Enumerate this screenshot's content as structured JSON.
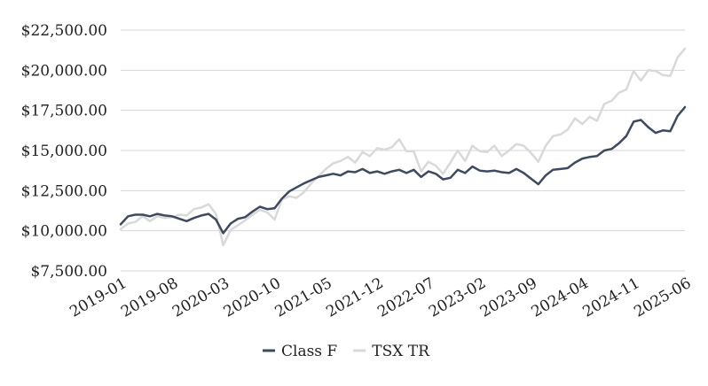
{
  "chart_data": {
    "type": "line",
    "title": "",
    "xlabel": "",
    "ylabel": "",
    "ylim": [
      7500,
      22500
    ],
    "yticks": [
      7500,
      10000,
      12500,
      15000,
      17500,
      20000,
      22500
    ],
    "ytick_labels": [
      "$7,500.00",
      "$10,000.00",
      "$12,500.00",
      "$15,000.00",
      "$17,500.00",
      "$20,000.00",
      "$22,500.00"
    ],
    "xtick_labels": [
      "2019-01",
      "2019-08",
      "2020-03",
      "2020-10",
      "2021-05",
      "2021-12",
      "2022-07",
      "2023-02",
      "2023-09",
      "2024-04",
      "2024-11",
      "2025-06"
    ],
    "x": [
      "2019-01",
      "2019-02",
      "2019-03",
      "2019-04",
      "2019-05",
      "2019-06",
      "2019-07",
      "2019-08",
      "2019-09",
      "2019-10",
      "2019-11",
      "2019-12",
      "2020-01",
      "2020-02",
      "2020-03",
      "2020-04",
      "2020-05",
      "2020-06",
      "2020-07",
      "2020-08",
      "2020-09",
      "2020-10",
      "2020-11",
      "2020-12",
      "2021-01",
      "2021-02",
      "2021-03",
      "2021-04",
      "2021-05",
      "2021-06",
      "2021-07",
      "2021-08",
      "2021-09",
      "2021-10",
      "2021-11",
      "2021-12",
      "2022-01",
      "2022-02",
      "2022-03",
      "2022-04",
      "2022-05",
      "2022-06",
      "2022-07",
      "2022-08",
      "2022-09",
      "2022-10",
      "2022-11",
      "2022-12",
      "2023-01",
      "2023-02",
      "2023-03",
      "2023-04",
      "2023-05",
      "2023-06",
      "2023-07",
      "2023-08",
      "2023-09",
      "2023-10",
      "2023-11",
      "2023-12",
      "2024-01",
      "2024-02",
      "2024-03",
      "2024-04",
      "2024-05",
      "2024-06",
      "2024-07",
      "2024-08",
      "2024-09",
      "2024-10",
      "2024-11",
      "2024-12",
      "2025-01",
      "2025-02",
      "2025-03",
      "2025-04",
      "2025-05",
      "2025-06"
    ],
    "grid": true,
    "legend_position": "bottom",
    "series": [
      {
        "name": "Class F",
        "color": "#3d4a5f",
        "values": [
          10400,
          10900,
          11000,
          11000,
          10900,
          11050,
          10950,
          10900,
          10750,
          10600,
          10800,
          10950,
          11050,
          10700,
          9850,
          10450,
          10750,
          10850,
          11200,
          11500,
          11350,
          11400,
          12000,
          12450,
          12700,
          12950,
          13150,
          13350,
          13450,
          13550,
          13450,
          13700,
          13650,
          13850,
          13600,
          13700,
          13550,
          13700,
          13800,
          13600,
          13800,
          13350,
          13700,
          13550,
          13200,
          13300,
          13800,
          13600,
          14000,
          13750,
          13700,
          13750,
          13650,
          13600,
          13850,
          13600,
          13250,
          12900,
          13450,
          13800,
          13850,
          13900,
          14250,
          14500,
          14600,
          14650,
          15000,
          15100,
          15450,
          15900,
          16800,
          16900,
          16450,
          16100,
          16250,
          16200,
          17150,
          17700
        ]
      },
      {
        "name": "TSX TR",
        "color": "#d9d9d9",
        "values": [
          10100,
          10450,
          10550,
          10900,
          10600,
          10900,
          10800,
          10850,
          11000,
          10950,
          11350,
          11450,
          11650,
          11050,
          9100,
          10050,
          10350,
          10650,
          11000,
          11300,
          11150,
          10700,
          11950,
          12150,
          12050,
          12400,
          12950,
          13400,
          13850,
          14200,
          14350,
          14600,
          14250,
          14900,
          14650,
          15150,
          15050,
          15200,
          15700,
          14950,
          14950,
          13700,
          14300,
          14050,
          13550,
          14250,
          15000,
          14350,
          15300,
          14950,
          14900,
          15300,
          14650,
          15000,
          15400,
          15300,
          14850,
          14300,
          15300,
          15900,
          16000,
          16300,
          17000,
          16650,
          17100,
          16850,
          17900,
          18100,
          18600,
          18800,
          19950,
          19350,
          20000,
          19950,
          19700,
          19650,
          20800,
          21350
        ]
      }
    ]
  }
}
